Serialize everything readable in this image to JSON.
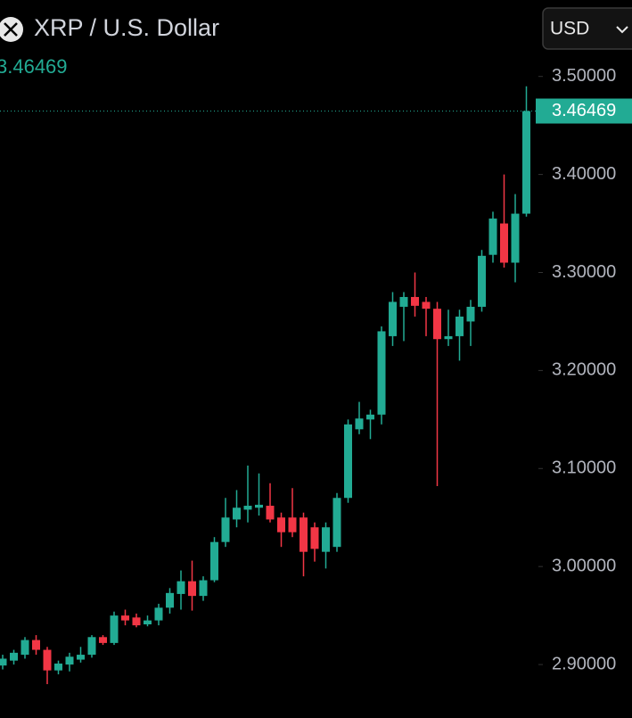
{
  "chart_data": {
    "type": "candlestick",
    "title": "XRP / U.S. Dollar",
    "currency": "USD",
    "last_price": 3.46469,
    "up_color": "#22ab94",
    "down_color": "#f23645",
    "open": [
      2.899,
      2.904,
      2.91,
      2.925,
      2.915,
      2.894,
      2.9,
      2.905,
      2.91,
      2.928,
      2.922,
      2.95,
      2.948,
      2.941,
      2.945,
      2.958,
      2.972,
      2.985,
      2.97,
      2.986,
      3.025,
      3.048,
      3.058,
      3.06,
      3.062,
      3.05,
      3.05,
      3.05,
      3.04,
      3.015,
      3.02,
      3.07,
      3.14,
      3.15,
      3.155,
      3.235,
      3.265,
      3.275,
      3.27,
      3.263,
      3.232,
      3.235,
      3.25,
      3.265,
      3.318,
      3.35,
      3.31,
      3.36
    ],
    "high": [
      2.91,
      2.915,
      2.928,
      2.93,
      2.918,
      2.904,
      2.912,
      2.918,
      2.93,
      2.93,
      2.954,
      2.956,
      2.952,
      2.95,
      2.962,
      2.978,
      2.996,
      3.006,
      2.99,
      3.03,
      3.07,
      3.078,
      3.103,
      3.095,
      3.085,
      3.055,
      3.08,
      3.055,
      3.045,
      3.045,
      3.075,
      3.15,
      3.168,
      3.16,
      3.245,
      3.28,
      3.28,
      3.3,
      3.275,
      3.27,
      3.262,
      3.262,
      3.272,
      3.323,
      3.362,
      3.4,
      3.38,
      3.49
    ],
    "low": [
      2.895,
      2.9,
      2.906,
      2.91,
      2.88,
      2.89,
      2.893,
      2.902,
      2.907,
      2.92,
      2.92,
      2.94,
      2.938,
      2.939,
      2.94,
      2.952,
      2.956,
      2.955,
      2.965,
      2.984,
      3.02,
      3.04,
      3.045,
      3.052,
      3.045,
      3.02,
      3.03,
      2.99,
      3.005,
      2.998,
      3.015,
      3.065,
      3.135,
      3.13,
      3.145,
      3.225,
      3.23,
      3.255,
      3.235,
      3.082,
      3.225,
      3.21,
      3.225,
      3.26,
      3.31,
      3.305,
      3.29,
      3.357
    ],
    "close": [
      2.906,
      2.912,
      2.925,
      2.915,
      2.894,
      2.901,
      2.908,
      2.91,
      2.928,
      2.922,
      2.95,
      2.945,
      2.94,
      2.945,
      2.958,
      2.973,
      2.985,
      2.97,
      2.986,
      3.025,
      3.05,
      3.06,
      3.062,
      3.063,
      3.048,
      3.035,
      3.035,
      3.015,
      3.018,
      3.04,
      3.07,
      3.145,
      3.151,
      3.155,
      3.24,
      3.27,
      3.275,
      3.266,
      3.263,
      3.232,
      3.235,
      3.255,
      3.265,
      3.317,
      3.355,
      3.31,
      3.36,
      3.46469
    ],
    "ylim": [
      2.85,
      3.578
    ],
    "yticks": [
      {
        "value": 2.9,
        "label": "2.90000"
      },
      {
        "value": 3.0,
        "label": "3.00000"
      },
      {
        "value": 3.1,
        "label": "3.10000"
      },
      {
        "value": 3.2,
        "label": "3.20000"
      },
      {
        "value": 3.3,
        "label": "3.30000"
      },
      {
        "value": 3.4,
        "label": "3.40000"
      },
      {
        "value": 3.5,
        "label": "3.50000"
      }
    ]
  }
}
